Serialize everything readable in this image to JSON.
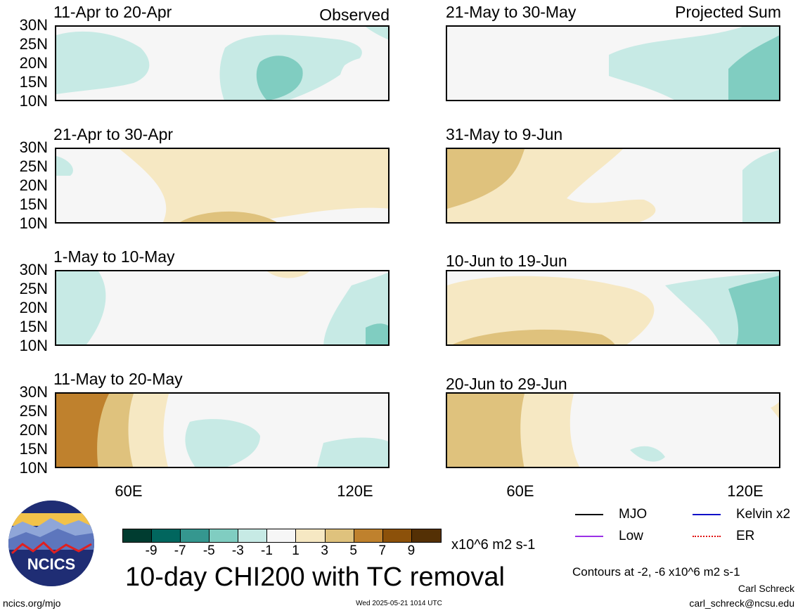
{
  "colors": {
    "land_outline": "#6e6e6e",
    "neutral": "#f6f6f6",
    "mjo": "#000000",
    "kelvin": "#1010c8",
    "low": "#9b30e6",
    "er": "#e01010"
  },
  "y_ticks": [
    "30N",
    "25N",
    "20N",
    "15N",
    "10N"
  ],
  "x_ticks": [
    "60E",
    "120E"
  ],
  "chart_data": {
    "type": "heatmap",
    "title": "10-day CHI200 with TC removal",
    "units": "x10^6 m2 s-1",
    "xlim": [
      40,
      130
    ],
    "ylim": [
      10,
      30
    ],
    "colorbar": {
      "levels": [
        "-9",
        "-7",
        "-5",
        "-3",
        "-1",
        "1",
        "3",
        "5",
        "7",
        "9"
      ],
      "colors": [
        "#003c30",
        "#01665e",
        "#35978f",
        "#80cdc1",
        "#c7eae5",
        "#f6f6f6",
        "#f6e8c3",
        "#dfc27d",
        "#bf812d",
        "#8c510a",
        "#543005"
      ]
    },
    "panels": [
      {
        "title": "11-Apr to 20-Apr",
        "tag": "Observed"
      },
      {
        "title": "21-May to 30-May",
        "tag": "Projected Sum"
      },
      {
        "title": "21-Apr to 30-Apr",
        "tag": ""
      },
      {
        "title": "31-May to 9-Jun",
        "tag": ""
      },
      {
        "title": "1-May to 10-May",
        "tag": ""
      },
      {
        "title": "10-Jun to 19-Jun",
        "tag": ""
      },
      {
        "title": "11-May to 20-May",
        "tag": ""
      },
      {
        "title": "20-Jun to 29-Jun",
        "tag": ""
      }
    ],
    "legend": [
      {
        "label": "MJO",
        "color": "#000000"
      },
      {
        "label": "Kelvin x2",
        "color": "#1010c8"
      },
      {
        "label": "Low",
        "color": "#9b30e6"
      },
      {
        "label": "ER",
        "color": "#e01010"
      }
    ],
    "contour_note": "Contours at -2, -6 x10^6 m2 s-1"
  },
  "footer": {
    "logo_text": "NCICS",
    "url": "ncics.org/mjo",
    "timestamp": "Wed 2025-05-21 1014 UTC",
    "author": "Carl Schreck",
    "email": "carl_schreck@ncsu.edu"
  }
}
